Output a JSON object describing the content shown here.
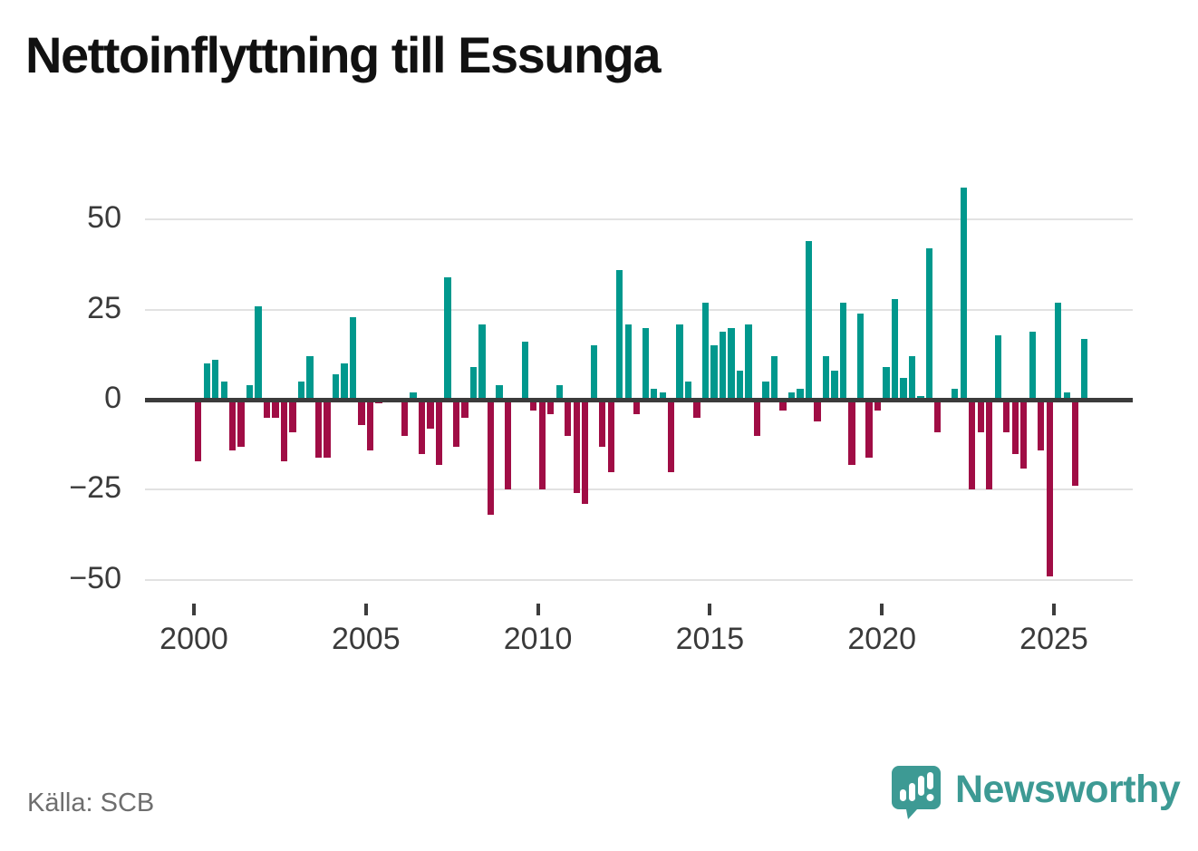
{
  "title": "Nettoinflyttning till Essunga",
  "source": "Källa: SCB",
  "logo": {
    "text": "Newsworthy",
    "color": "#3d9a94"
  },
  "chart_data": {
    "type": "bar",
    "title": "Nettoinflyttning till Essunga",
    "frequency": "quarterly",
    "x_start": "2000-Q1",
    "x_end": "2025-Q4",
    "values": [
      -17,
      10,
      11,
      5,
      -14,
      -13,
      4,
      26,
      -5,
      -5,
      -17,
      -9,
      5,
      12,
      -16,
      -16,
      7,
      10,
      23,
      -7,
      -14,
      -1,
      0,
      0,
      -10,
      2,
      -15,
      -8,
      -18,
      34,
      -13,
      -5,
      9,
      21,
      -32,
      4,
      -25,
      0,
      16,
      -3,
      -25,
      -4,
      4,
      -10,
      -26,
      -29,
      15,
      -13,
      -20,
      36,
      21,
      -4,
      20,
      3,
      2,
      -20,
      21,
      5,
      -5,
      27,
      15,
      19,
      20,
      8,
      21,
      -10,
      5,
      12,
      -3,
      2,
      3,
      44,
      -6,
      12,
      8,
      27,
      -18,
      24,
      -16,
      -3,
      9,
      28,
      6,
      12,
      1,
      42,
      -9,
      0,
      3,
      59,
      -25,
      -9,
      -25,
      18,
      -9,
      -15,
      -19,
      19,
      -14,
      -49,
      27,
      2,
      -24,
      17
    ],
    "x_tick_years": [
      2000,
      2005,
      2010,
      2015,
      2020,
      2025
    ],
    "x_tick_labels": [
      "2000",
      "2005",
      "2010",
      "2015",
      "2020",
      "2025"
    ],
    "y_tick_values": [
      50,
      25,
      0,
      -25,
      -50
    ],
    "y_tick_labels": [
      "50",
      "25",
      "0",
      "−25",
      "−50"
    ],
    "ylim": [
      -55,
      62
    ],
    "grid": true,
    "legend": "none",
    "colors": {
      "positive": "#00988d",
      "negative": "#a00d45"
    }
  }
}
